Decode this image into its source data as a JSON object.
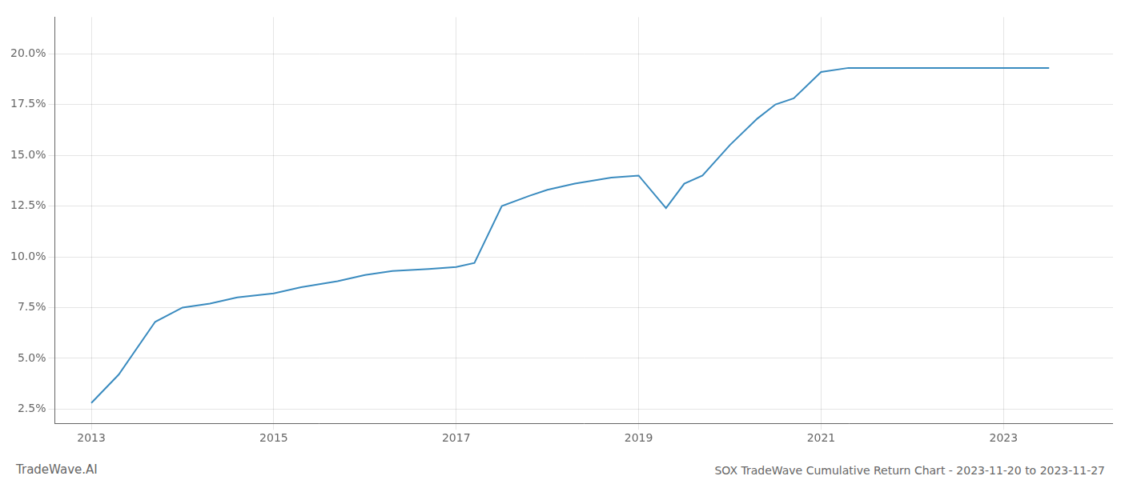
{
  "chart_data": {
    "type": "line",
    "title": "SOX TradeWave Cumulative Return Chart - 2023-11-20 to 2023-11-27",
    "annotations": [
      "TradeWave.AI"
    ],
    "x": [
      2013.0,
      2013.3,
      2013.7,
      2014.0,
      2014.3,
      2014.6,
      2015.0,
      2015.3,
      2015.7,
      2016.0,
      2016.3,
      2016.7,
      2017.0,
      2017.2,
      2017.5,
      2017.8,
      2018.0,
      2018.3,
      2018.7,
      2019.0,
      2019.3,
      2019.5,
      2019.7,
      2020.0,
      2020.3,
      2020.5,
      2020.7,
      2021.0,
      2021.3,
      2021.7,
      2022.0,
      2022.3,
      2022.7,
      2023.0,
      2023.5
    ],
    "values": [
      0.028,
      0.042,
      0.068,
      0.075,
      0.077,
      0.08,
      0.082,
      0.085,
      0.088,
      0.091,
      0.093,
      0.094,
      0.095,
      0.097,
      0.125,
      0.13,
      0.133,
      0.136,
      0.139,
      0.14,
      0.124,
      0.136,
      0.14,
      0.155,
      0.168,
      0.175,
      0.178,
      0.191,
      0.193,
      0.193,
      0.193,
      0.193,
      0.193,
      0.193,
      0.193
    ],
    "color": "#3a8bbf",
    "xlim": [
      2012.6,
      2024.2
    ],
    "ylim": [
      0.018,
      0.218
    ],
    "xticks": [
      2013,
      2015,
      2017,
      2019,
      2021,
      2023
    ],
    "yticks": [
      {
        "value": 0.025,
        "label": "2.5%"
      },
      {
        "value": 0.05,
        "label": "5.0%"
      },
      {
        "value": 0.075,
        "label": "7.5%"
      },
      {
        "value": 0.1,
        "label": "10.0%"
      },
      {
        "value": 0.125,
        "label": "12.5%"
      },
      {
        "value": 0.15,
        "label": "15.0%"
      },
      {
        "value": 0.175,
        "label": "17.5%"
      },
      {
        "value": 0.2,
        "label": "20.0%"
      }
    ],
    "grid": true
  }
}
